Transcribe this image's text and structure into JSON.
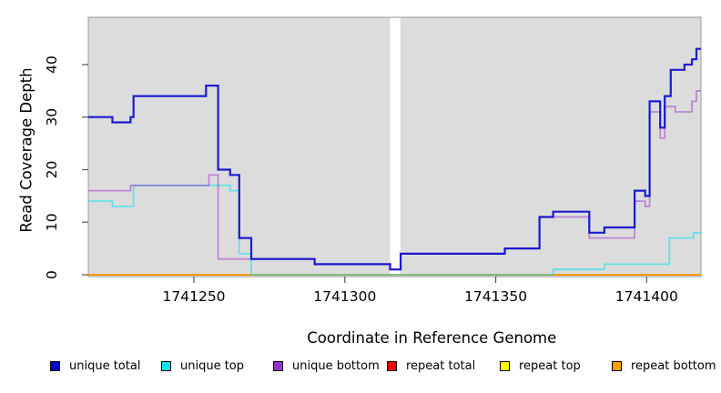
{
  "chart_data": {
    "type": "line",
    "subtype": "step-after",
    "title": "",
    "xlabel": "Coordinate in Reference Genome",
    "ylabel": "Read Coverage Depth",
    "x_domain": [
      1741215,
      1741418
    ],
    "y_domain": [
      0,
      49
    ],
    "x_ticks": [
      1741250,
      1741300,
      1741350,
      1741400
    ],
    "y_ticks": [
      0,
      10,
      20,
      30,
      40
    ],
    "grid": false,
    "plot_bg": "#DCDCDC",
    "plot_border": "#9a9a9a",
    "tick_color": "#555555",
    "gap_region": {
      "from": 1741315,
      "to": 1741318.4,
      "fill": "#FFFFFF"
    },
    "series": [
      {
        "name": "repeat total",
        "color": "#DD0000",
        "alpha": 1,
        "width": 1.6,
        "points": [
          [
            1741215,
            0
          ]
        ]
      },
      {
        "name": "repeat top",
        "color": "#FFFF00",
        "alpha": 1,
        "width": 1.6,
        "points": [
          [
            1741215,
            0
          ]
        ]
      },
      {
        "name": "repeat bottom",
        "color": "#FF9100",
        "alpha": 1,
        "width": 1.8,
        "points": [
          [
            1741215,
            0
          ]
        ]
      },
      {
        "name": "unique top",
        "color": "#00E5EE",
        "alpha": 0.55,
        "width": 1.8,
        "points": [
          [
            1741215,
            14
          ],
          [
            1741223,
            13
          ],
          [
            1741230,
            17
          ],
          [
            1741262,
            16
          ],
          [
            1741265,
            4
          ],
          [
            1741269,
            0
          ],
          [
            1741369,
            1
          ],
          [
            1741386,
            2
          ],
          [
            1741407.5,
            7
          ],
          [
            1741415.5,
            8
          ]
        ]
      },
      {
        "name": "unique bottom",
        "color": "#9932CC",
        "alpha": 0.5,
        "width": 1.8,
        "points": [
          [
            1741215,
            16
          ],
          [
            1741229,
            17
          ],
          [
            1741255,
            19
          ],
          [
            1741258,
            3
          ],
          [
            1741290,
            2
          ],
          [
            1741315,
            1
          ],
          [
            1741318.5,
            4
          ],
          [
            1741353,
            5
          ],
          [
            1741364.5,
            11
          ],
          [
            1741381,
            7
          ],
          [
            1741396,
            14
          ],
          [
            1741399.5,
            13
          ],
          [
            1741401,
            31
          ],
          [
            1741404.5,
            26
          ],
          [
            1741406,
            32
          ],
          [
            1741409.5,
            31
          ],
          [
            1741415,
            33
          ],
          [
            1741416.5,
            35
          ]
        ]
      },
      {
        "name": "unique total",
        "color": "#0B0BCE",
        "alpha": 0.92,
        "width": 2.2,
        "points": [
          [
            1741215,
            30
          ],
          [
            1741223,
            29
          ],
          [
            1741229,
            30
          ],
          [
            1741230,
            34
          ],
          [
            1741254,
            36
          ],
          [
            1741258,
            20
          ],
          [
            1741262,
            19
          ],
          [
            1741265,
            7
          ],
          [
            1741269,
            3
          ],
          [
            1741290,
            2
          ],
          [
            1741315,
            1
          ],
          [
            1741318.5,
            4
          ],
          [
            1741353,
            5
          ],
          [
            1741364.5,
            11
          ],
          [
            1741369,
            12
          ],
          [
            1741381,
            8
          ],
          [
            1741386,
            9
          ],
          [
            1741396,
            16
          ],
          [
            1741399.5,
            15
          ],
          [
            1741401,
            33
          ],
          [
            1741404.5,
            28
          ],
          [
            1741406,
            34
          ],
          [
            1741408,
            39
          ],
          [
            1741412.5,
            40
          ],
          [
            1741415,
            41
          ],
          [
            1741416.5,
            43
          ]
        ]
      }
    ]
  },
  "legend": {
    "items": [
      {
        "label": "unique total",
        "color": "#0000CD"
      },
      {
        "label": "unique top",
        "color": "#00E5EE"
      },
      {
        "label": "unique bottom",
        "color": "#9932CC"
      },
      {
        "label": "repeat total",
        "color": "#EE0000"
      },
      {
        "label": "repeat top",
        "color": "#FFFF00"
      },
      {
        "label": "repeat bottom",
        "color": "#FFA000"
      }
    ]
  }
}
